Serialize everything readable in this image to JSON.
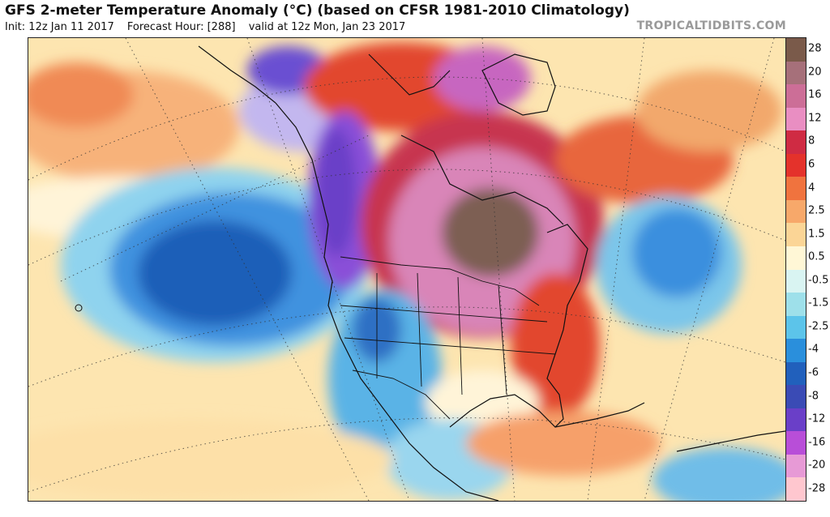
{
  "header": {
    "title": "GFS 2-meter Temperature Anomaly (°C) (based on CFSR 1981-2010 Climatology)",
    "init": "Init: 12z Jan 11 2017",
    "forecast_hour": "Forecast Hour: [288]",
    "valid": "valid at 12z Mon, Jan 23 2017",
    "source": "TROPICALTIDBITS.COM"
  },
  "colorbar": {
    "levels": [
      {
        "label": "28",
        "color": "#7a5a4a"
      },
      {
        "label": "20",
        "color": "#a6707a"
      },
      {
        "label": "16",
        "color": "#cc6e97"
      },
      {
        "label": "12",
        "color": "#e98ec2"
      },
      {
        "label": "8",
        "color": "#cf2b43"
      },
      {
        "label": "6",
        "color": "#e4322b"
      },
      {
        "label": "4",
        "color": "#f0733e"
      },
      {
        "label": "2.5",
        "color": "#f7a86a"
      },
      {
        "label": "1.5",
        "color": "#fbd596"
      },
      {
        "label": "0.5",
        "color": "#fff7d6"
      },
      {
        "label": "-0.5",
        "color": "#d9f4f2"
      },
      {
        "label": "-1.5",
        "color": "#9ee0ea"
      },
      {
        "label": "-2.5",
        "color": "#5cc4ea"
      },
      {
        "label": "-4",
        "color": "#2a8fdc"
      },
      {
        "label": "-6",
        "color": "#2160bc"
      },
      {
        "label": "-8",
        "color": "#3a4bb5"
      },
      {
        "label": "-12",
        "color": "#6a3fc8"
      },
      {
        "label": "-16",
        "color": "#b84ed8"
      },
      {
        "label": "-20",
        "color": "#e79ad6"
      },
      {
        "label": "-28",
        "color": "#ffc7cf"
      }
    ]
  },
  "map": {
    "colors": {
      "cold_core": "#1f5fb8",
      "cold": "#3f92df",
      "cool": "#8fd3ee",
      "extreme_cold": "#8a4fd8",
      "warm": "#f4a35f",
      "hot": "#e2462f",
      "very_hot": "#c7344f",
      "extreme_warm": "#d985b8",
      "peak_warm": "#7d5f52"
    }
  }
}
